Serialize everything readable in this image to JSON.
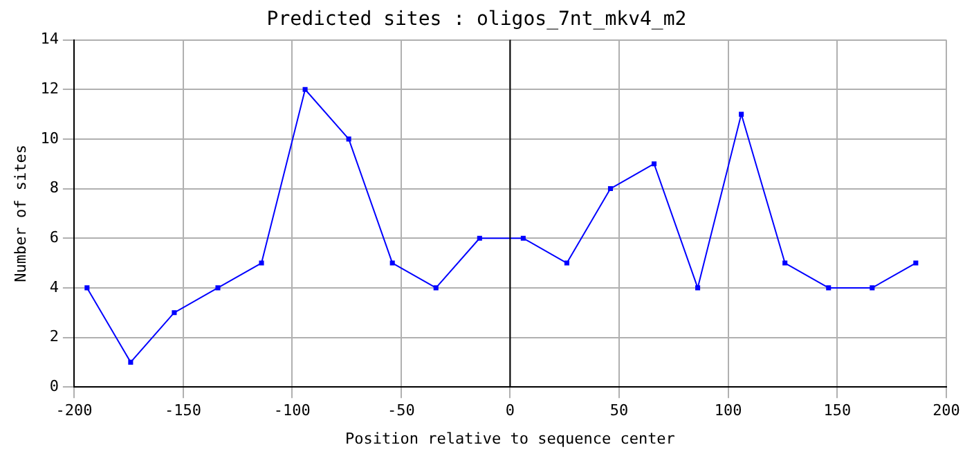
{
  "chart_data": {
    "type": "line",
    "title": "Predicted sites : oligos_7nt_mkv4_m2",
    "xlabel": "Position relative to sequence center",
    "ylabel": "Number of sites",
    "x": [
      -194,
      -174,
      -154,
      -134,
      -114,
      -94,
      -74,
      -54,
      -34,
      -14,
      6,
      26,
      46,
      66,
      86,
      106,
      126,
      146,
      166,
      186
    ],
    "series": [
      {
        "color": "#0000ff",
        "values": [
          4,
          1,
          3,
          4,
          5,
          12,
          10,
          5,
          4,
          6,
          6,
          5,
          8,
          9,
          4,
          11,
          5,
          4,
          4,
          5
        ]
      }
    ],
    "xlim": [
      -200,
      200
    ],
    "xticks": [
      -200,
      -150,
      -100,
      -50,
      0,
      50,
      100,
      150,
      200
    ],
    "ylim": [
      0,
      14
    ],
    "yticks": [
      0,
      2,
      4,
      6,
      8,
      10,
      12,
      14
    ],
    "grid": true,
    "marker": "square",
    "line_style": "solid",
    "legend": false,
    "ref_lines": [
      {
        "axis": "x",
        "value": 0,
        "color": "#000000"
      }
    ]
  }
}
